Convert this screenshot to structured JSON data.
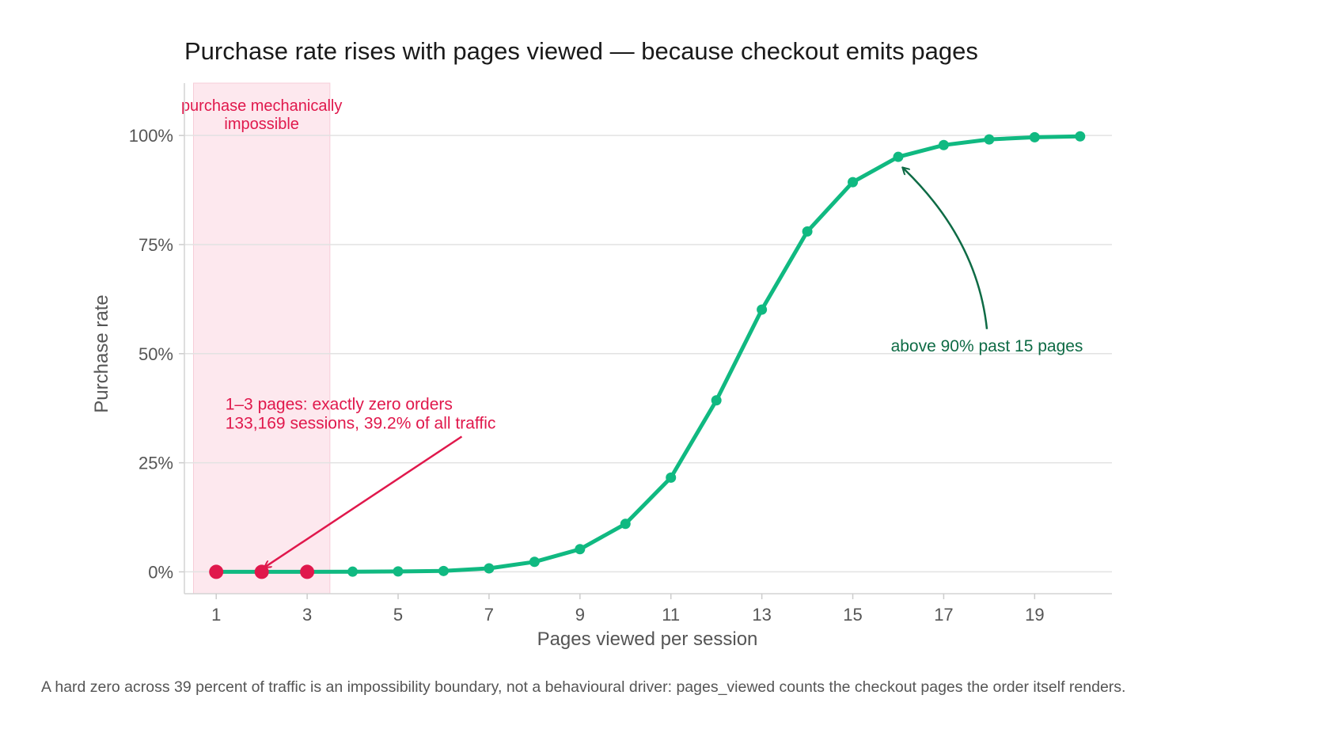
{
  "chart_data": {
    "type": "line",
    "title": "Purchase rate rises with pages viewed — because checkout emits pages",
    "xlabel": "Pages viewed per session",
    "ylabel": "Purchase rate",
    "xlim": [
      0.3,
      20.7
    ],
    "ylim": [
      -0.05,
      1.12
    ],
    "xticks": [
      1,
      3,
      5,
      7,
      9,
      11,
      13,
      15,
      17,
      19
    ],
    "yticks": [
      {
        "value": 0,
        "label": "0%"
      },
      {
        "value": 0.25,
        "label": "25%"
      },
      {
        "value": 0.5,
        "label": "50%"
      },
      {
        "value": 0.75,
        "label": "75%"
      },
      {
        "value": 1,
        "label": "100%"
      }
    ],
    "grid": "horizontal",
    "x": [
      1,
      2,
      3,
      4,
      5,
      6,
      7,
      8,
      9,
      10,
      11,
      12,
      13,
      14,
      15,
      16,
      17,
      18,
      19,
      20
    ],
    "values": [
      0,
      0,
      0,
      0.0005,
      0.001,
      0.002,
      0.008,
      0.023,
      0.052,
      0.11,
      0.216,
      0.393,
      0.601,
      0.78,
      0.893,
      0.951,
      0.978,
      0.991,
      0.996,
      0.998
    ],
    "impossible_points": [
      1,
      2,
      3
    ],
    "shaded_region": {
      "x_from": 0.5,
      "x_to": 3.5,
      "label_line1": "purchase mechanically",
      "label_line2": "impossible"
    },
    "annotations": [
      {
        "id": "zero-orders",
        "line1": "1–3 pages: exactly zero orders",
        "line2": "133,169 sessions, 39.2% of all traffic",
        "target_x": 2,
        "target_y": 0,
        "text_x": 1.2,
        "text_y": 0.35
      },
      {
        "id": "above-90",
        "line1": "above 90% past 15 pages",
        "target_x": 16,
        "target_y": 0.951,
        "text_x": 17.95,
        "text_y": 0.52
      }
    ],
    "caption": "A hard zero across 39 percent of traffic is an impossibility boundary, not a behavioural driver: pages_viewed counts the checkout pages the order itself renders.",
    "colors": {
      "line": "#10b981",
      "impossible": "#e0184c",
      "shade": "#fde8ee",
      "annotation_green": "#0e6b45",
      "grid": "#e2e2e2"
    }
  }
}
